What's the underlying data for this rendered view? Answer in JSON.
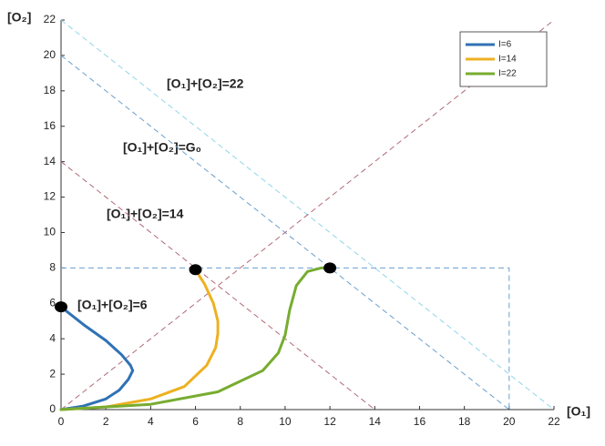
{
  "chart_data": {
    "type": "line",
    "xlabel": "[O₁]",
    "ylabel": "[O₂]",
    "xlim": [
      0,
      22
    ],
    "ylim": [
      0,
      22
    ],
    "xticks": [
      0,
      2,
      4,
      6,
      8,
      10,
      12,
      14,
      16,
      18,
      20,
      22
    ],
    "yticks": [
      0,
      2,
      4,
      6,
      8,
      10,
      12,
      14,
      16,
      18,
      20,
      22
    ],
    "legend": "upper right",
    "annotations": [
      "[O₁]+[O₂]=22",
      "[O₁]+[O₂]=G₀",
      "[O₁]+[O₂]=14",
      "[O₁]+[O₂]=6"
    ],
    "reference_lines": [
      {
        "color": "#8fd6ea",
        "x": [
          0,
          22
        ],
        "y": [
          22,
          0
        ]
      },
      {
        "color": "#6a9fcf",
        "x": [
          0,
          20
        ],
        "y": [
          20,
          0
        ]
      },
      {
        "color": "#b06a78",
        "x": [
          0,
          14
        ],
        "y": [
          14,
          0
        ]
      },
      {
        "color": "#b06a78",
        "x": [
          0,
          22
        ],
        "y": [
          0,
          22
        ]
      },
      {
        "color": "#6a9fcf",
        "x": [
          0,
          20,
          20
        ],
        "y": [
          8,
          8,
          0
        ]
      }
    ],
    "series": [
      {
        "name": "I=6",
        "color": "#2f72b5",
        "x": [
          0,
          1,
          2,
          2.6,
          3.0,
          3.2,
          null,
          0,
          1,
          2,
          2.7,
          3.1,
          3.2
        ],
        "values": [
          0,
          0.2,
          0.6,
          1.1,
          1.7,
          2.2,
          null,
          5.8,
          4.8,
          3.9,
          3.1,
          2.5,
          2.2
        ]
      },
      {
        "name": "I=14",
        "color": "#edb120",
        "x": [
          0,
          2,
          4,
          5.5,
          6.5,
          6.9,
          7.0,
          null,
          6,
          6.4,
          6.8,
          7.0,
          7.0
        ],
        "values": [
          0,
          0.15,
          0.6,
          1.3,
          2.5,
          3.5,
          4.3,
          null,
          7.9,
          7.1,
          6.0,
          5.0,
          4.3
        ]
      },
      {
        "name": "I=22",
        "color": "#77ac30",
        "x": [
          0,
          4,
          7,
          9,
          9.7,
          10.0,
          10.2,
          10.5,
          11,
          11.6,
          12
        ],
        "values": [
          0,
          0.3,
          1.0,
          2.2,
          3.2,
          4.2,
          5.6,
          7.0,
          7.8,
          8.0,
          8.0
        ]
      }
    ],
    "markers": {
      "color": "#000000",
      "x": [
        0,
        6,
        12
      ],
      "y": [
        5.8,
        7.9,
        8
      ]
    }
  }
}
